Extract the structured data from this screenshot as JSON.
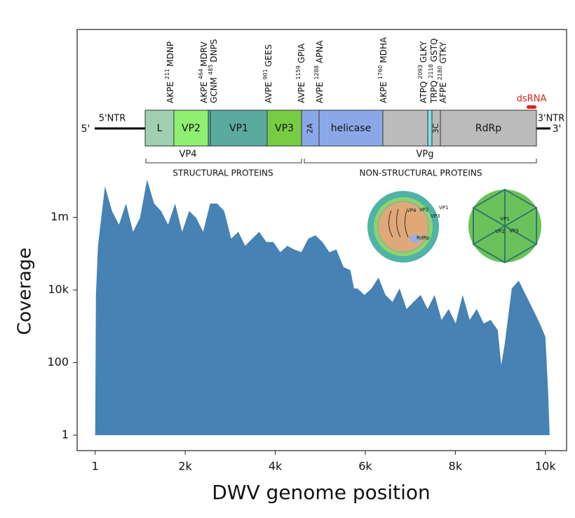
{
  "chart_data": {
    "type": "area",
    "x_label": "DWV genome position",
    "y_label": "Coverage",
    "log_y": true,
    "color": "#4682b4",
    "xlim": [
      -400,
      10470
    ],
    "ylim": [
      0.376,
      150000000000
    ],
    "xticks": [
      1,
      {
        "value": 2000,
        "label": "2k"
      },
      {
        "value": 4000,
        "label": "4k"
      },
      {
        "value": 6000,
        "label": "6k"
      },
      {
        "value": 8000,
        "label": "8k"
      },
      {
        "value": 10000,
        "label": "10k"
      }
    ],
    "yticks": [
      1,
      100,
      {
        "value": 10000,
        "label": "10k"
      },
      {
        "value": 1000000,
        "label": "1m"
      }
    ],
    "x": [
      1,
      17,
      62,
      218,
      374,
      530,
      686,
      841,
      997,
      1153,
      1308,
      1464,
      1620,
      1776,
      1931,
      2087,
      2243,
      2399,
      2554,
      2710,
      2866,
      3022,
      3178,
      3333,
      3489,
      3645,
      3800,
      3956,
      4112,
      4268,
      4424,
      4579,
      4735,
      4891,
      5047,
      5202,
      5358,
      5514,
      5670,
      5748,
      5825,
      5981,
      6137,
      6293,
      6448,
      6604,
      6760,
      6916,
      7071,
      7227,
      7383,
      7539,
      7694,
      7850,
      8006,
      8162,
      8318,
      8473,
      8629,
      8785,
      8941,
      9019,
      9096,
      9252,
      9408,
      9564,
      9720,
      9875,
      10000,
      10062,
      10093
    ],
    "values": [
      1,
      7300,
      165000,
      7200000,
      1500000,
      630000,
      2400000,
      400000,
      980000,
      11000000,
      2400000,
      1500000,
      630000,
      2400000,
      400000,
      1500000,
      980000,
      400000,
      2400000,
      2400000,
      1500000,
      260000,
      400000,
      165000,
      260000,
      400000,
      210000,
      210000,
      110000,
      165000,
      130000,
      110000,
      260000,
      320000,
      210000,
      110000,
      130000,
      43000,
      35000,
      11000,
      11000,
      7300,
      11000,
      22000,
      7300,
      4700,
      11000,
      3000,
      4700,
      7300,
      3000,
      7300,
      1500,
      3000,
      1200,
      7300,
      1500,
      3000,
      1200,
      1500,
      790,
      86,
      330,
      11000,
      18000,
      7300,
      3000,
      1200,
      510,
      14,
      1
    ]
  },
  "genome_map": {
    "five_prime_ntr": "5'NTR",
    "five_prime": "5'",
    "three_prime_ntr": "3'NTR",
    "three_prime": "3'",
    "dsrna": "dsRNA",
    "segments": [
      "L",
      "VP2",
      "VP1",
      "VP3",
      "2A",
      "helicase",
      "3C",
      "RdRp"
    ],
    "vp4": "VP4",
    "vpg": "VPg",
    "structural": "STRUCTURAL PROTEINS",
    "non_structural": "NON-STRUCTURAL PROTEINS",
    "sites": [
      {
        "left": "AKPE",
        "pos": "211",
        "right": "MDNP"
      },
      {
        "left": "AKPE",
        "pos": "464",
        "right": "MDRV"
      },
      {
        "left": "GCNM",
        "pos": "485",
        "right": "DNPS"
      },
      {
        "left": "AVPE",
        "pos": "901",
        "right": "GEES"
      },
      {
        "left": "AVPE",
        "pos": "1159",
        "right": "GPIA"
      },
      {
        "left": "AVPE",
        "pos": "1288",
        "right": "APNA"
      },
      {
        "left": "AKPE",
        "pos": "1760",
        "right": "MDHA"
      },
      {
        "left": "ATPQ",
        "pos": "2093",
        "right": "GLKY"
      },
      {
        "left": "TRPQ",
        "pos": "2118",
        "right": "GSTQ"
      },
      {
        "left": "AFPE",
        "pos": "2180",
        "right": "GTKY"
      }
    ],
    "virion_labels": [
      "VP2",
      "VP3",
      "VP1",
      "VP4",
      "RdRp"
    ],
    "capsid_labels": [
      "VP1",
      "VP2",
      "VP3"
    ]
  }
}
